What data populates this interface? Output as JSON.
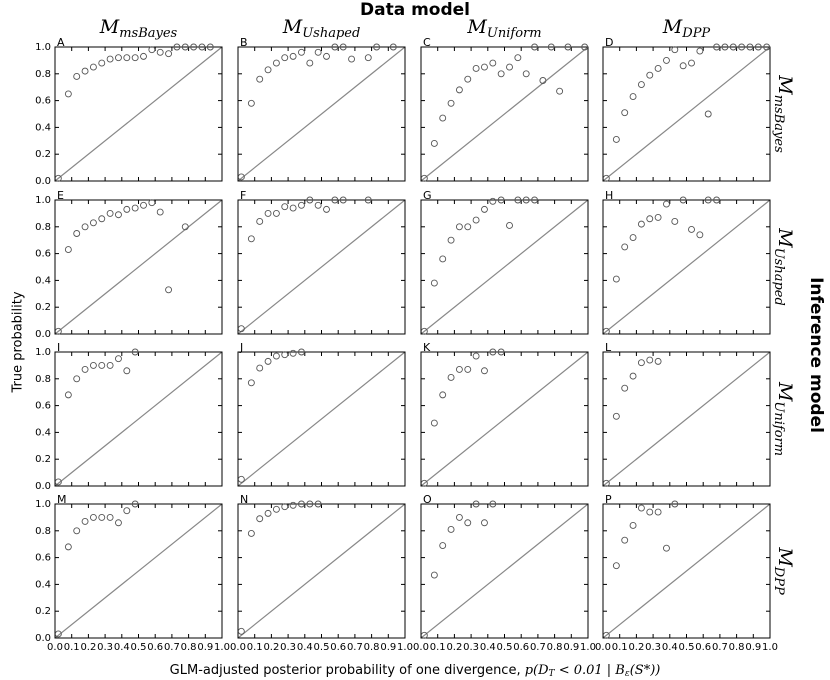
{
  "title": "Data model",
  "row_group_title": "Inference model",
  "y_label": "True probability",
  "x_label": [
    "GLM-adjusted posterior probability of one divergence, ",
    "p(D",
    "T",
    " < 0.01 | B",
    "ε",
    "(S*))"
  ],
  "column_titles": [
    {
      "main": "M",
      "sub": "msBayes"
    },
    {
      "main": "M",
      "sub": "Ushaped"
    },
    {
      "main": "M",
      "sub": "Uniform"
    },
    {
      "main": "M",
      "sub": "DPP"
    }
  ],
  "row_titles": [
    {
      "main": "M",
      "sub": "msBayes"
    },
    {
      "main": "M",
      "sub": "Ushaped"
    },
    {
      "main": "M",
      "sub": "Uniform"
    },
    {
      "main": "M",
      "sub": "DPP"
    }
  ],
  "axes": {
    "xlim": [
      0,
      1
    ],
    "ylim": [
      0,
      1
    ],
    "xticks": [
      {
        "value": 0,
        "label": "0.0"
      },
      {
        "value": 0.1,
        "label": "0.1"
      },
      {
        "value": 0.2,
        "label": "0.2"
      },
      {
        "value": 0.3,
        "label": "0.3"
      },
      {
        "value": 0.4,
        "label": "0.4"
      },
      {
        "value": 0.5,
        "label": "0.5"
      },
      {
        "value": 0.6,
        "label": "0.6"
      },
      {
        "value": 0.7,
        "label": "0.7"
      },
      {
        "value": 0.8,
        "label": "0.8"
      },
      {
        "value": 0.9,
        "label": "0.9"
      },
      {
        "value": 1,
        "label": "1.0"
      }
    ],
    "yticks": [
      {
        "value": 0,
        "label": "0.0"
      },
      {
        "value": 0.2,
        "label": "0.2"
      },
      {
        "value": 0.4,
        "label": "0.4"
      },
      {
        "value": 0.6,
        "label": "0.6"
      },
      {
        "value": 0.8,
        "label": "0.8"
      },
      {
        "value": 1,
        "label": "1.0"
      }
    ]
  },
  "chart_data": [
    {
      "type": "scatter",
      "label": "A",
      "x": [
        0.02,
        0.08,
        0.13,
        0.18,
        0.23,
        0.28,
        0.33,
        0.38,
        0.43,
        0.48,
        0.53,
        0.58,
        0.63,
        0.68,
        0.73,
        0.78,
        0.83,
        0.88,
        0.93
      ],
      "y": [
        0.02,
        0.65,
        0.78,
        0.82,
        0.85,
        0.88,
        0.91,
        0.92,
        0.92,
        0.92,
        0.93,
        0.98,
        0.96,
        0.95,
        1,
        1,
        1,
        1,
        1
      ]
    },
    {
      "type": "scatter",
      "label": "B",
      "x": [
        0.02,
        0.08,
        0.13,
        0.18,
        0.23,
        0.28,
        0.33,
        0.38,
        0.43,
        0.48,
        0.53,
        0.58,
        0.63,
        0.68,
        0.78,
        0.83,
        0.93
      ],
      "y": [
        0.03,
        0.58,
        0.76,
        0.83,
        0.88,
        0.92,
        0.93,
        0.96,
        0.88,
        0.96,
        0.93,
        1,
        1,
        0.91,
        0.92,
        1,
        1
      ]
    },
    {
      "type": "scatter",
      "label": "C",
      "x": [
        0.02,
        0.08,
        0.13,
        0.18,
        0.23,
        0.28,
        0.33,
        0.38,
        0.43,
        0.48,
        0.53,
        0.58,
        0.63,
        0.68,
        0.73,
        0.78,
        0.83,
        0.88,
        0.98
      ],
      "y": [
        0.02,
        0.28,
        0.47,
        0.58,
        0.68,
        0.76,
        0.84,
        0.85,
        0.88,
        0.8,
        0.85,
        0.92,
        0.8,
        1,
        0.75,
        1,
        0.67,
        1,
        1
      ]
    },
    {
      "type": "scatter",
      "label": "D",
      "x": [
        0.02,
        0.08,
        0.13,
        0.18,
        0.23,
        0.28,
        0.33,
        0.38,
        0.43,
        0.48,
        0.53,
        0.58,
        0.63,
        0.68,
        0.73,
        0.78,
        0.83,
        0.88,
        0.93,
        0.98
      ],
      "y": [
        0.02,
        0.31,
        0.51,
        0.63,
        0.72,
        0.79,
        0.84,
        0.9,
        0.98,
        0.86,
        0.88,
        0.97,
        0.5,
        1,
        1,
        1,
        1,
        1,
        1,
        1
      ]
    },
    {
      "type": "scatter",
      "label": "E",
      "x": [
        0.02,
        0.08,
        0.13,
        0.18,
        0.23,
        0.28,
        0.33,
        0.38,
        0.43,
        0.48,
        0.53,
        0.58,
        0.63,
        0.68,
        0.78
      ],
      "y": [
        0.02,
        0.63,
        0.75,
        0.8,
        0.83,
        0.86,
        0.9,
        0.89,
        0.93,
        0.94,
        0.96,
        0.98,
        0.91,
        0.33,
        0.8
      ]
    },
    {
      "type": "scatter",
      "label": "F",
      "x": [
        0.02,
        0.08,
        0.13,
        0.18,
        0.23,
        0.28,
        0.33,
        0.38,
        0.43,
        0.48,
        0.53,
        0.58,
        0.63,
        0.78
      ],
      "y": [
        0.04,
        0.71,
        0.84,
        0.9,
        0.9,
        0.95,
        0.94,
        0.96,
        1,
        0.96,
        0.93,
        1,
        1,
        1
      ]
    },
    {
      "type": "scatter",
      "label": "G",
      "x": [
        0.02,
        0.08,
        0.13,
        0.18,
        0.23,
        0.28,
        0.33,
        0.38,
        0.43,
        0.48,
        0.53,
        0.58,
        0.63,
        0.68
      ],
      "y": [
        0.02,
        0.38,
        0.56,
        0.7,
        0.8,
        0.8,
        0.85,
        0.93,
        0.99,
        1,
        0.81,
        1,
        1,
        1
      ]
    },
    {
      "type": "scatter",
      "label": "H",
      "x": [
        0.02,
        0.08,
        0.13,
        0.18,
        0.23,
        0.28,
        0.33,
        0.38,
        0.43,
        0.48,
        0.53,
        0.58,
        0.63,
        0.68
      ],
      "y": [
        0.02,
        0.41,
        0.65,
        0.72,
        0.82,
        0.86,
        0.87,
        0.97,
        0.84,
        1,
        0.78,
        0.74,
        1,
        1
      ]
    },
    {
      "type": "scatter",
      "label": "I",
      "x": [
        0.02,
        0.08,
        0.13,
        0.18,
        0.23,
        0.28,
        0.33,
        0.38,
        0.43,
        0.48
      ],
      "y": [
        0.03,
        0.68,
        0.8,
        0.87,
        0.9,
        0.9,
        0.9,
        0.95,
        0.86,
        1
      ]
    },
    {
      "type": "scatter",
      "label": "J",
      "x": [
        0.02,
        0.08,
        0.13,
        0.18,
        0.23,
        0.28,
        0.33,
        0.38
      ],
      "y": [
        0.05,
        0.77,
        0.88,
        0.93,
        0.97,
        0.98,
        0.99,
        1
      ]
    },
    {
      "type": "scatter",
      "label": "K",
      "x": [
        0.02,
        0.08,
        0.13,
        0.18,
        0.23,
        0.28,
        0.33,
        0.38,
        0.43,
        0.48
      ],
      "y": [
        0.02,
        0.47,
        0.68,
        0.81,
        0.87,
        0.87,
        0.97,
        0.86,
        1,
        1
      ]
    },
    {
      "type": "scatter",
      "label": "L",
      "x": [
        0.02,
        0.08,
        0.13,
        0.18,
        0.23,
        0.28,
        0.33
      ],
      "y": [
        0.02,
        0.52,
        0.73,
        0.82,
        0.92,
        0.94,
        0.93
      ]
    },
    {
      "type": "scatter",
      "label": "M",
      "x": [
        0.02,
        0.08,
        0.13,
        0.18,
        0.23,
        0.28,
        0.33,
        0.38,
        0.43,
        0.48
      ],
      "y": [
        0.03,
        0.68,
        0.8,
        0.87,
        0.9,
        0.9,
        0.9,
        0.86,
        0.95,
        1
      ]
    },
    {
      "type": "scatter",
      "label": "N",
      "x": [
        0.02,
        0.08,
        0.13,
        0.18,
        0.23,
        0.28,
        0.33,
        0.38,
        0.43,
        0.48
      ],
      "y": [
        0.05,
        0.78,
        0.89,
        0.93,
        0.96,
        0.98,
        0.99,
        1,
        1,
        1
      ]
    },
    {
      "type": "scatter",
      "label": "O",
      "x": [
        0.02,
        0.08,
        0.13,
        0.18,
        0.23,
        0.28,
        0.33,
        0.38,
        0.43
      ],
      "y": [
        0.02,
        0.47,
        0.69,
        0.81,
        0.9,
        0.86,
        1,
        0.86,
        1
      ]
    },
    {
      "type": "scatter",
      "label": "P",
      "x": [
        0.02,
        0.08,
        0.13,
        0.18,
        0.23,
        0.28,
        0.33,
        0.38,
        0.43
      ],
      "y": [
        0.02,
        0.54,
        0.73,
        0.84,
        0.97,
        0.94,
        0.94,
        0.67,
        1
      ]
    }
  ]
}
